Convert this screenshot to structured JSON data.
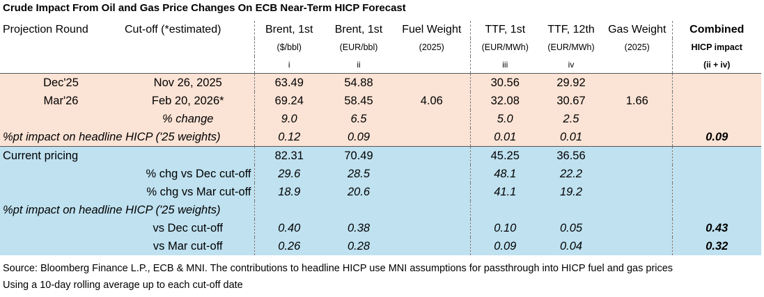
{
  "title": "Crude Impact From Oil and Gas Price Changes On ECB Near-Term HICP Forecast",
  "headers": {
    "projection_round": "Projection Round",
    "cutoff": "Cut-off (*estimated)",
    "brent_usd": "Brent, 1st",
    "brent_usd_unit": "($/bbl)",
    "brent_usd_idx": "i",
    "brent_eur": "Brent, 1st",
    "brent_eur_unit": "(EUR/bbl)",
    "brent_eur_idx": "ii",
    "fuel_weight": "Fuel Weight",
    "fuel_weight_year": "(2025)",
    "ttf_1st": "TTF, 1st",
    "ttf_1st_unit": "(EUR/MWh)",
    "ttf_1st_idx": "iii",
    "ttf_12th": "TTF, 12th",
    "ttf_12th_unit": "(EUR/MWh)",
    "ttf_12th_idx": "iv",
    "gas_weight": "Gas Weight",
    "gas_weight_year": "(2025)",
    "combined_1": "Combined",
    "combined_2": "HICP impact",
    "combined_3": "(ii + iv)"
  },
  "rows": {
    "dec": {
      "round": "Dec'25",
      "cutoff": "Nov 26, 2025",
      "brent_usd": "63.49",
      "brent_eur": "54.88",
      "ttf_1st": "30.56",
      "ttf_12th": "29.92"
    },
    "mar": {
      "round": "Mar'26",
      "cutoff": "Feb 20, 2026*",
      "brent_usd": "69.24",
      "brent_eur": "58.45",
      "fuel_weight": "4.06",
      "ttf_1st": "32.08",
      "ttf_12th": "30.67",
      "gas_weight": "1.66"
    },
    "pct_change": {
      "label": "% change",
      "brent_usd": "9.0",
      "brent_eur": "6.5",
      "ttf_1st": "5.0",
      "ttf_12th": "2.5"
    },
    "impact1": {
      "label": "%pt impact on headline HICP ('25 weights)",
      "brent_usd": "0.12",
      "brent_eur": "0.09",
      "ttf_1st": "0.01",
      "ttf_12th": "0.01",
      "combined": "0.09"
    },
    "current": {
      "label": "Current pricing",
      "brent_usd": "82.31",
      "brent_eur": "70.49",
      "ttf_1st": "45.25",
      "ttf_12th": "36.56"
    },
    "chg_dec": {
      "label": "% chg vs Dec cut-off",
      "brent_usd": "29.6",
      "brent_eur": "28.5",
      "ttf_1st": "48.1",
      "ttf_12th": "22.2"
    },
    "chg_mar": {
      "label": "% chg vs Mar cut-off",
      "brent_usd": "18.9",
      "brent_eur": "20.6",
      "ttf_1st": "41.1",
      "ttf_12th": "19.2"
    },
    "impact2": {
      "label": "%pt impact on headline HICP ('25 weights)"
    },
    "vs_dec": {
      "label": "vs Dec cut-off",
      "brent_usd": "0.40",
      "brent_eur": "0.38",
      "ttf_1st": "0.10",
      "ttf_12th": "0.05",
      "combined": "0.43"
    },
    "vs_mar": {
      "label": "vs Mar cut-off",
      "brent_usd": "0.26",
      "brent_eur": "0.28",
      "ttf_1st": "0.09",
      "ttf_12th": "0.04",
      "combined": "0.32"
    }
  },
  "footer": {
    "source": "Source: Bloomberg Finance L.P., ECB & MNI. The contributions to headline HICP use MNI assumptions for passthrough into HICP fuel and gas prices",
    "note": "Using a 10-day rolling average up to each cut-off date"
  },
  "colors": {
    "peach": "#fbe3d5",
    "blue": "#bfe1f0"
  }
}
